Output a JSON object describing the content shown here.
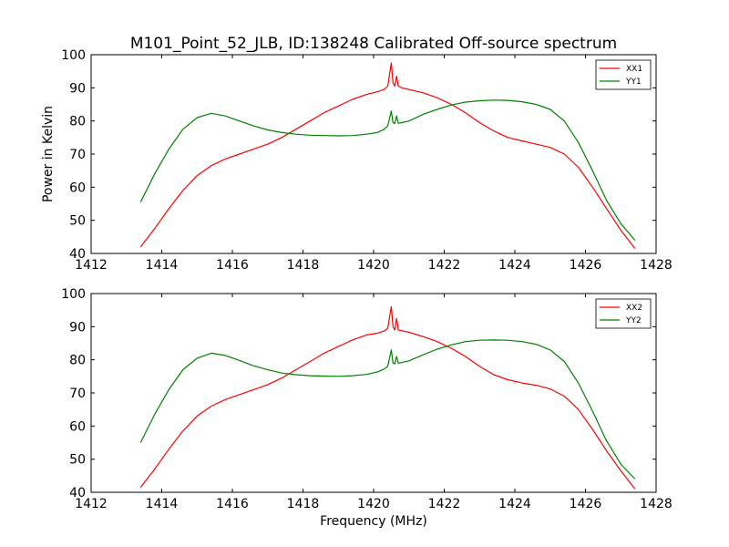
{
  "figure": {
    "title": "M101_Point_52_JLB, ID:138248 Calibrated Off-source spectrum"
  },
  "chart_data": [
    {
      "type": "line",
      "title": "M101_Point_52_JLB, ID:138248 Calibrated Off-source spectrum",
      "xlabel": "",
      "ylabel": "Power in Kelvin",
      "xlim": [
        1412,
        1428
      ],
      "ylim": [
        40,
        100
      ],
      "xticks": [
        1412,
        1414,
        1416,
        1418,
        1420,
        1422,
        1424,
        1426,
        1428
      ],
      "yticks": [
        40,
        50,
        60,
        70,
        80,
        90,
        100
      ],
      "grid": false,
      "legend_position": "top-right",
      "series": [
        {
          "name": "XX1",
          "color": "#ff0000",
          "x": [
            1413.4,
            1413.8,
            1414.2,
            1414.6,
            1415.0,
            1415.4,
            1415.8,
            1416.2,
            1416.6,
            1417.0,
            1417.4,
            1417.8,
            1418.2,
            1418.6,
            1419.0,
            1419.4,
            1419.8,
            1420.1,
            1420.3,
            1420.4,
            1420.5,
            1420.55,
            1420.6,
            1420.65,
            1420.7,
            1420.8,
            1421.0,
            1421.4,
            1421.8,
            1422.2,
            1422.6,
            1423.0,
            1423.4,
            1423.8,
            1424.2,
            1424.6,
            1425.0,
            1425.4,
            1425.8,
            1426.2,
            1426.6,
            1427.0,
            1427.4
          ],
          "y": [
            42.0,
            47.5,
            53.5,
            59.0,
            63.5,
            66.5,
            68.5,
            70.0,
            71.5,
            73.0,
            75.0,
            77.5,
            80.0,
            82.5,
            84.5,
            86.5,
            88.0,
            88.8,
            89.5,
            90.5,
            97.5,
            91.5,
            90.5,
            93.5,
            90.5,
            90.0,
            89.5,
            88.5,
            87.0,
            85.0,
            82.5,
            79.5,
            77.0,
            75.0,
            74.0,
            73.0,
            72.0,
            70.0,
            66.0,
            60.0,
            53.5,
            47.0,
            41.5
          ]
        },
        {
          "name": "YY1",
          "color": "#008000",
          "x": [
            1413.4,
            1413.8,
            1414.2,
            1414.6,
            1415.0,
            1415.4,
            1415.8,
            1416.2,
            1416.6,
            1417.0,
            1417.4,
            1417.8,
            1418.2,
            1418.6,
            1419.0,
            1419.4,
            1419.8,
            1420.1,
            1420.3,
            1420.4,
            1420.5,
            1420.55,
            1420.6,
            1420.65,
            1420.7,
            1420.8,
            1421.0,
            1421.4,
            1421.8,
            1422.2,
            1422.6,
            1423.0,
            1423.4,
            1423.8,
            1424.2,
            1424.6,
            1425.0,
            1425.4,
            1425.8,
            1426.2,
            1426.6,
            1427.0,
            1427.4
          ],
          "y": [
            55.5,
            64.0,
            71.5,
            77.5,
            81.0,
            82.3,
            81.5,
            80.0,
            78.5,
            77.3,
            76.5,
            76.0,
            75.7,
            75.6,
            75.5,
            75.6,
            76.0,
            76.5,
            77.5,
            78.5,
            83.0,
            79.5,
            79.2,
            81.5,
            79.3,
            79.5,
            80.0,
            82.0,
            83.5,
            84.8,
            85.7,
            86.1,
            86.3,
            86.2,
            85.8,
            85.0,
            83.5,
            80.0,
            73.5,
            65.0,
            56.0,
            49.0,
            44.0
          ]
        }
      ]
    },
    {
      "type": "line",
      "title": "",
      "xlabel": "Frequency (MHz)",
      "ylabel": "",
      "xlim": [
        1412,
        1428
      ],
      "ylim": [
        40,
        100
      ],
      "xticks": [
        1412,
        1414,
        1416,
        1418,
        1420,
        1422,
        1424,
        1426,
        1428
      ],
      "yticks": [
        40,
        50,
        60,
        70,
        80,
        90,
        100
      ],
      "grid": false,
      "legend_position": "top-right",
      "series": [
        {
          "name": "XX2",
          "color": "#ff0000",
          "x": [
            1413.4,
            1413.8,
            1414.2,
            1414.6,
            1415.0,
            1415.4,
            1415.8,
            1416.2,
            1416.6,
            1417.0,
            1417.4,
            1417.8,
            1418.2,
            1418.6,
            1419.0,
            1419.4,
            1419.8,
            1420.1,
            1420.3,
            1420.4,
            1420.5,
            1420.55,
            1420.6,
            1420.65,
            1420.7,
            1420.8,
            1421.0,
            1421.4,
            1421.8,
            1422.2,
            1422.6,
            1423.0,
            1423.4,
            1423.8,
            1424.2,
            1424.6,
            1425.0,
            1425.4,
            1425.8,
            1426.2,
            1426.6,
            1427.0,
            1427.4
          ],
          "y": [
            41.5,
            47.0,
            53.0,
            58.5,
            63.0,
            66.0,
            68.0,
            69.5,
            71.0,
            72.5,
            74.5,
            77.0,
            79.5,
            82.0,
            84.0,
            86.0,
            87.5,
            88.0,
            88.7,
            89.5,
            96.0,
            90.0,
            89.0,
            92.5,
            89.0,
            88.8,
            88.3,
            87.0,
            85.5,
            83.5,
            81.0,
            78.0,
            75.5,
            74.0,
            73.0,
            72.3,
            71.2,
            69.0,
            65.0,
            59.0,
            52.5,
            46.5,
            41.0
          ]
        },
        {
          "name": "YY2",
          "color": "#008000",
          "x": [
            1413.4,
            1413.8,
            1414.2,
            1414.6,
            1415.0,
            1415.4,
            1415.8,
            1416.2,
            1416.6,
            1417.0,
            1417.4,
            1417.8,
            1418.2,
            1418.6,
            1419.0,
            1419.4,
            1419.8,
            1420.1,
            1420.3,
            1420.4,
            1420.5,
            1420.55,
            1420.6,
            1420.65,
            1420.7,
            1420.8,
            1421.0,
            1421.4,
            1421.8,
            1422.2,
            1422.6,
            1423.0,
            1423.4,
            1423.8,
            1424.2,
            1424.6,
            1425.0,
            1425.4,
            1425.8,
            1426.2,
            1426.6,
            1427.0,
            1427.4
          ],
          "y": [
            55.0,
            63.5,
            71.0,
            77.0,
            80.5,
            82.0,
            81.3,
            79.8,
            78.2,
            77.0,
            76.0,
            75.5,
            75.2,
            75.1,
            75.0,
            75.2,
            75.6,
            76.3,
            77.2,
            78.0,
            83.0,
            79.0,
            78.8,
            81.0,
            79.0,
            79.2,
            79.7,
            81.5,
            83.2,
            84.5,
            85.5,
            85.9,
            86.0,
            85.9,
            85.5,
            84.7,
            83.0,
            79.5,
            73.0,
            64.5,
            55.5,
            48.5,
            44.0
          ]
        }
      ]
    }
  ]
}
